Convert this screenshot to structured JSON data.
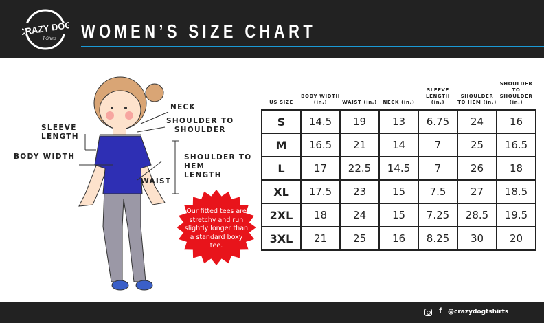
{
  "header": {
    "title": "WOMEN’S SIZE CHART",
    "logo_text": "CRAZY DOG T-Shirts",
    "accent": "#1b9ad6"
  },
  "labels": {
    "neck": "NECK",
    "shoulder_to_shoulder": [
      "SHOULDER TO",
      "SHOULDER"
    ],
    "sleeve_length": [
      "SLEEVE",
      "LENGTH"
    ],
    "body_width": "BODY WIDTH",
    "shoulder_to_hem": [
      "SHOULDER TO",
      "HEM",
      "LENGTH"
    ],
    "waist": "WAIST"
  },
  "callout": {
    "text": "Our fitted tees are stretchy and run slightly longer than a standard boxy tee.",
    "color": "#e8141b"
  },
  "table": {
    "headers": [
      "US SIZE",
      "BODY WIDTH (in.)",
      "WAIST (in.)",
      "NECK (in.)",
      "SLEEVE LENGTH (in.)",
      "SHOULDER TO HEM (in.)",
      "SHOULDER TO SHOULDER (in.)"
    ],
    "rows": [
      [
        "S",
        "14.5",
        "19",
        "13",
        "6.75",
        "24",
        "16"
      ],
      [
        "M",
        "16.5",
        "21",
        "14",
        "7",
        "25",
        "16.5"
      ],
      [
        "L",
        "17",
        "22.5",
        "14.5",
        "7",
        "26",
        "18"
      ],
      [
        "XL",
        "17.5",
        "23",
        "15",
        "7.5",
        "27",
        "18.5"
      ],
      [
        "2XL",
        "18",
        "24",
        "15",
        "7.25",
        "28.5",
        "19.5"
      ],
      [
        "3XL",
        "21",
        "25",
        "16",
        "8.25",
        "30",
        "20"
      ]
    ]
  },
  "footer": {
    "instagram_icon": "instagram-icon",
    "facebook_icon": "facebook-icon",
    "facebook_glyph": "f",
    "handle": "@crazydogtshirts"
  }
}
